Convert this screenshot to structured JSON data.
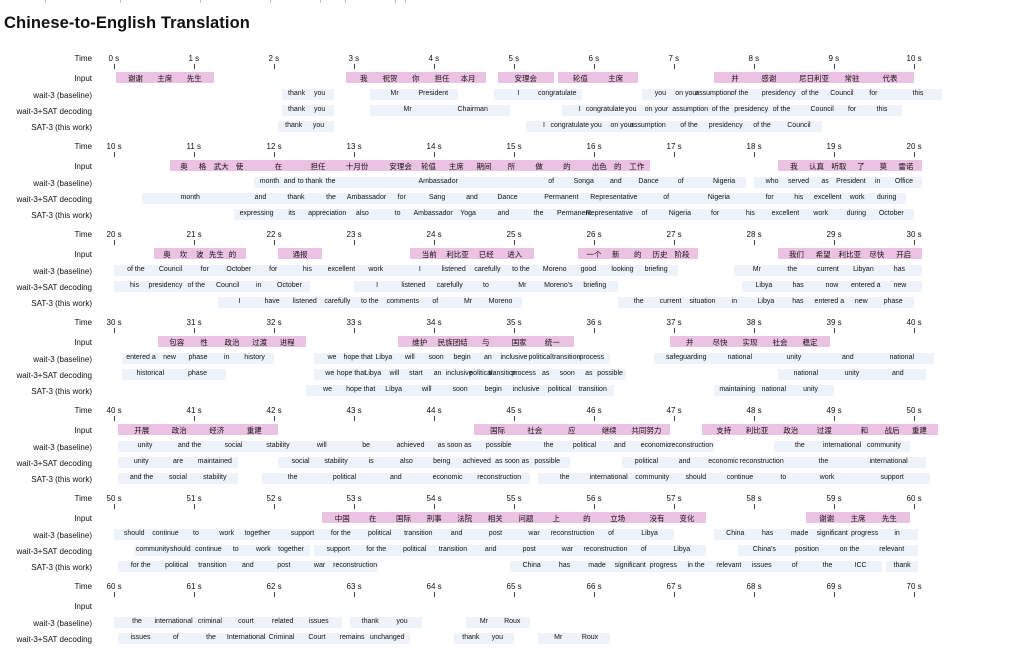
{
  "title": "Chinese-to-English Translation",
  "row_labels": {
    "time": "Time",
    "input": "Input",
    "wait3": "wait-3 (baseline)",
    "wait3sat": "wait-3+SAT decoding",
    "sat3": "SAT-3 (this work)"
  },
  "colors": {
    "input_box": "#ecc2e2",
    "output_box": "#eef3fb"
  },
  "panels": [
    {
      "ticks": [
        "0 s",
        "1 s",
        "2 s",
        "3 s",
        "4 s",
        "5 s",
        "6 s",
        "7 s",
        "8 s",
        "9 s",
        "10 s"
      ],
      "input": [
        [
          "谢谢",
          "主席",
          "先生"
        ],
        [],
        [],
        [
          "我",
          "祝贺",
          "你",
          "担任",
          "本月"
        ],
        [
          "安理会"
        ],
        [
          "轮值",
          "主席"
        ],
        [],
        [
          "并",
          "感谢"
        ],
        [
          "尼日利亚",
          "常驻",
          "代表"
        ],
        []
      ],
      "wait3": [
        [],
        [],
        [
          "thank",
          "you"
        ],
        [
          "Mr",
          "President"
        ],
        [
          "I",
          "congratulate"
        ],
        [],
        [],
        [
          "you",
          "on your",
          "assumption",
          "of the"
        ],
        [
          "presidency",
          "of the",
          "Council",
          "for"
        ],
        [
          "this"
        ]
      ],
      "wait3sat": [
        [],
        [],
        [
          "thank",
          "you"
        ],
        [
          "Mr",
          "Chairman"
        ],
        [],
        [],
        [
          "I",
          "congratulate",
          "you",
          "on your"
        ],
        [
          "assumption",
          "of the",
          "presidency",
          "of the"
        ],
        [
          "Council",
          "for",
          "this"
        ],
        []
      ],
      "sat3": [
        [],
        [],
        [
          "thank",
          "you"
        ],
        [],
        [],
        [
          "I",
          "congratulate",
          "you",
          "on your",
          "assumption"
        ],
        [
          "of the",
          "presidency",
          "of the",
          "Council"
        ],
        [],
        [],
        []
      ]
    },
    {
      "ticks": [
        "10 s",
        "11 s",
        "12 s",
        "13 s",
        "14 s",
        "15 s",
        "16 s",
        "17 s",
        "18 s",
        "19 s",
        "20 s"
      ],
      "input": [
        [
          "奥",
          "格",
          "武大",
          "使"
        ],
        [
          "在",
          "担任",
          "十月份"
        ],
        [
          "安理会",
          "轮值",
          "主席",
          "期间",
          "所",
          "做",
          "的"
        ],
        [
          "出色",
          "的",
          "工作"
        ],
        [],
        [],
        [
          "我",
          "认真",
          "听取",
          "了",
          "莫",
          "雷诺"
        ],
        [],
        [],
        [],
        []
      ],
      "wait3": [
        [],
        [
          "month",
          "and",
          "to thank",
          "the"
        ],
        [
          "Ambassador"
        ],
        [
          "of",
          "Songa",
          "and",
          "Dance",
          "of"
        ],
        [
          "Nigeria"
        ],
        [],
        [
          "who",
          "served",
          "as",
          "President",
          "in",
          "Office"
        ],
        [],
        [],
        [],
        []
      ],
      "wait3sat": [
        [
          "month"
        ],
        [
          "and",
          "thank",
          "the",
          "Ambassador",
          "for",
          "Sang",
          "and",
          "Dance"
        ],
        [
          "Permanent",
          "Representative",
          "of",
          "Nigeria"
        ],
        [],
        [
          "for",
          "his",
          "excellent",
          "work",
          "during"
        ],
        [],
        [],
        [],
        [],
        [],
        []
      ],
      "sat3": [
        [
          "expressing",
          "its",
          "appreciation",
          "also",
          "to",
          "Ambassador",
          "Yoga",
          "and",
          "the",
          "Permanent",
          "Representative",
          "of",
          "Nigeria",
          "for",
          "his",
          "excellent",
          "work",
          "during",
          "October"
        ],
        [],
        [],
        [],
        [],
        [],
        [],
        [],
        [],
        [],
        []
      ]
    },
    {
      "ticks": [
        "20 s",
        "21 s",
        "22 s",
        "23 s",
        "24 s",
        "25 s",
        "26 s",
        "27 s",
        "28 s",
        "29 s",
        "30 s"
      ],
      "input": [
        [
          "奥",
          "坎",
          "波",
          "先生",
          "的"
        ],
        [
          "通报"
        ],
        [
          "当前",
          "利比亚",
          "已经",
          "进入"
        ],
        [
          "一个",
          "新",
          "的",
          "历史",
          "阶段"
        ],
        [
          "我们",
          "希望",
          "利比亚",
          "尽快",
          "开启"
        ],
        [],
        [],
        [],
        [],
        [],
        []
      ],
      "wait3": [
        [
          "of the",
          "Council",
          "for",
          "October",
          "for",
          "his",
          "excellent",
          "work"
        ],
        [
          "I",
          "listened",
          "carefully",
          "to the",
          "Moreno",
          "good",
          "looking",
          "briefing"
        ],
        [
          "Mr",
          "the",
          "current",
          "Libyan",
          "has"
        ],
        [],
        [],
        [],
        [],
        [],
        [],
        [],
        []
      ],
      "wait3sat": [
        [
          "his",
          "presidency",
          "of the",
          "Council",
          "in",
          "October"
        ],
        [
          "I",
          "listened",
          "carefully",
          "to",
          "Mr",
          "Moreno's",
          "briefing"
        ],
        [
          "Libya",
          "has",
          "now",
          "entered a",
          "new"
        ],
        [],
        [],
        [],
        [],
        [],
        [],
        [],
        []
      ],
      "sat3": [
        [
          "I",
          "have",
          "listened",
          "carefully",
          "to the",
          "comments",
          "of",
          "Mr",
          "Moreno"
        ],
        [
          "the",
          "current",
          "situation",
          "in",
          "Libya",
          "has",
          "entered a",
          "new",
          "phase"
        ],
        [],
        [],
        [],
        [],
        [],
        [],
        [],
        [],
        []
      ]
    },
    {
      "ticks": [
        "30 s",
        "31 s",
        "32 s",
        "33 s",
        "34 s",
        "35 s",
        "36 s",
        "37 s",
        "38 s",
        "39 s",
        "40 s"
      ],
      "input": [
        [
          "包容",
          "性",
          "政治",
          "过渡",
          "进程"
        ],
        [
          "维护",
          "民族团结",
          "与",
          "国家",
          "统一"
        ],
        [
          "并",
          "尽快",
          "实现",
          "社会",
          "稳定"
        ],
        [],
        [],
        [],
        [],
        [],
        [],
        [],
        []
      ],
      "wait3": [
        [
          "entered a",
          "new",
          "phase",
          "in",
          "history"
        ],
        [
          "we",
          "hope that",
          "Libya",
          "will",
          "soon",
          "begin",
          "an",
          "inclusive",
          "political",
          "transition",
          "process"
        ],
        [
          "safeguarding",
          "national",
          "unity",
          "and",
          "national"
        ],
        [],
        [],
        [],
        [],
        [],
        [],
        [],
        []
      ],
      "wait3sat": [
        [
          "historical",
          "phase"
        ],
        [
          "we",
          "hope that",
          "Libya",
          "will",
          "start",
          "an",
          "inclusive",
          "political",
          "transition",
          "process",
          "as",
          "soon",
          "as",
          "possible"
        ],
        [
          "national",
          "unity",
          "and"
        ],
        [],
        [],
        [],
        [],
        [],
        [],
        [],
        []
      ],
      "sat3": [
        [
          "we",
          "hope that",
          "Libya",
          "will",
          "soon",
          "begin",
          "inclusive",
          "political",
          "transition"
        ],
        [
          "maintaining",
          "national",
          "unity"
        ],
        [],
        [],
        [],
        [],
        [],
        [],
        [],
        [],
        []
      ]
    },
    {
      "ticks": [
        "40 s",
        "41 s",
        "42 s",
        "43 s",
        "44 s",
        "45 s",
        "46 s",
        "47 s",
        "48 s",
        "49 s",
        "50 s"
      ],
      "input": [
        [
          "开展",
          "政治",
          "经济",
          "重建"
        ],
        [
          "国际",
          "社会",
          "应",
          "继续",
          "共同努力"
        ],
        [
          "支持",
          "利比亚",
          "政治",
          "过渡"
        ],
        [
          "和",
          "战后",
          "重建"
        ],
        [],
        [],
        [],
        [],
        [],
        [],
        []
      ],
      "wait3": [
        [
          "unity",
          "and the",
          "social",
          "stability",
          "will",
          "be",
          "achieved",
          "as soon as",
          "possible"
        ],
        [
          "the",
          "political",
          "and",
          "economic",
          "reconstruction"
        ],
        [
          "the",
          "international",
          "community"
        ],
        [],
        [],
        [],
        [],
        [],
        [],
        [],
        []
      ],
      "wait3sat": [
        [
          "unity",
          "are",
          "maintained"
        ],
        [
          "social",
          "stability",
          "is",
          "also",
          "being",
          "achieved",
          "as soon as",
          "possible"
        ],
        [
          "political",
          "and",
          "economic",
          "reconstruction"
        ],
        [
          "the",
          "international"
        ],
        [],
        [],
        [],
        [],
        [],
        [],
        []
      ],
      "sat3": [
        [
          "and the",
          "social",
          "stability"
        ],
        [
          "the",
          "political",
          "and",
          "economic",
          "reconstruction"
        ],
        [
          "the",
          "international",
          "community",
          "should",
          "continue",
          "to",
          "work"
        ],
        [
          "support"
        ],
        [],
        [],
        [],
        [],
        [],
        [],
        []
      ]
    },
    {
      "ticks": [
        "50 s",
        "51 s",
        "52 s",
        "53 s",
        "54 s",
        "55 s",
        "56 s",
        "57 s",
        "58 s",
        "59 s",
        "60 s"
      ],
      "input": [
        [
          "中国",
          "在",
          "国际",
          "刑事",
          "法院",
          "相关",
          "问题",
          "上",
          "的",
          "立场"
        ],
        [
          "没有",
          "变化"
        ],
        [
          "谢谢",
          "主席",
          "先生"
        ],
        [],
        [],
        [],
        [],
        [],
        [],
        [],
        []
      ],
      "wait3": [
        [
          "should",
          "continue",
          "to",
          "work",
          "together"
        ],
        [
          "support",
          "for the",
          "political",
          "transition",
          "and",
          "post",
          "war",
          "reconstruction",
          "of",
          "Libya"
        ],
        [
          "China",
          "has",
          "made",
          "significant",
          "progress",
          "in"
        ],
        [],
        [],
        [],
        [],
        [],
        [],
        [],
        []
      ],
      "wait3sat": [
        [
          "community",
          "should",
          "continue",
          "to",
          "work",
          "together"
        ],
        [
          "support",
          "for the",
          "political",
          "transition",
          "and",
          "post",
          "war",
          "reconstruction",
          "of",
          "Libya"
        ],
        [
          "China's",
          "position",
          "on the",
          "relevant"
        ],
        [],
        [],
        [],
        [],
        [],
        [],
        [],
        []
      ],
      "sat3": [
        [
          "for the",
          "political",
          "transition",
          "and",
          "post",
          "war",
          "reconstruction"
        ],
        [
          "China",
          "has",
          "made",
          "significant",
          "progress",
          "in the",
          "relevant",
          "issues",
          "of",
          "the",
          "ICC"
        ],
        [
          "thank"
        ],
        [],
        [],
        [],
        [],
        [],
        [],
        [],
        []
      ]
    },
    {
      "ticks": [
        "60 s",
        "61 s",
        "62 s",
        "63 s",
        "64 s",
        "65 s",
        "66 s",
        "67 s",
        "68 s",
        "69 s",
        "70 s"
      ],
      "input": [
        [],
        [],
        [],
        [],
        [],
        [],
        [],
        [],
        [],
        [],
        []
      ],
      "wait3": [
        [
          "the",
          "international",
          "criminal",
          "court",
          "related",
          "issues"
        ],
        [
          "thank",
          "you"
        ],
        [
          "Mr",
          "Roux"
        ],
        [],
        [],
        [],
        [],
        [],
        [],
        [],
        []
      ],
      "wait3sat": [
        [
          "issues",
          "of",
          "the",
          "International",
          "Criminal",
          "Court",
          "remains",
          "unchanged"
        ],
        [
          "thank",
          "you"
        ],
        [
          "Mr",
          "Roux"
        ],
        [],
        [],
        [],
        [],
        [],
        [],
        [],
        []
      ]
    }
  ]
}
